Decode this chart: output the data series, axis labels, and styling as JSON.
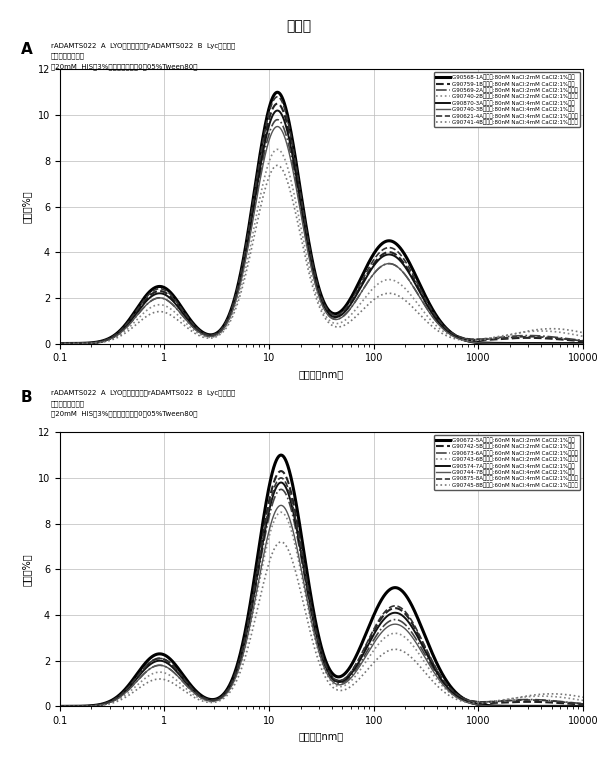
{
  "title": "図２５",
  "panel_A_title1": "rADAMTS022  A  LYO開始時およびrADAMTS022  B  Lyc開始時：",
  "panel_A_title2": "強度によるサイズ",
  "panel_A_subtitle": "（20mM  HIS；3%マンニトール；0．05%Tween80）",
  "panel_B_title1": "rADAMTS022  A  LYO開始時およびrADAMTS022  B  Lyc開始時：",
  "panel_B_title2": "強度によるサイズ",
  "panel_B_subtitle": "（20mM  HIS；3%マンニトール；0．05%Tween80）",
  "xlabel": "サイズ（nm）",
  "ylabel": "強度（%）",
  "legend_A": [
    {
      "label": "G90568-1A開始時:80nM NaCl:2mM CaCl2:1%の層",
      "color": "#000000",
      "ls": "-",
      "lw": 2.2
    },
    {
      "label": "G90759-1B開始時:80nM NaCl:2mM CaCl2:1%の脱",
      "color": "#222222",
      "ls": "--",
      "lw": 1.5
    },
    {
      "label": "G90569-2A開始時:80nM NaCl:2mM CaCl2:1%バース",
      "color": "#444444",
      "ls": "-.",
      "lw": 1.2
    },
    {
      "label": "G90740-2B開始時:80nM NaCl:2mM CaCl2:1%バース",
      "color": "#888888",
      "ls": ":",
      "lw": 1.2
    },
    {
      "label": "G90870-3A開始時:80nM NaCl:4mM CaCl2:1%の脱",
      "color": "#111111",
      "ls": "-",
      "lw": 1.4
    },
    {
      "label": "G90740-3B開始時:80nM NaCl:4mM CaCl2:1%の線",
      "color": "#555555",
      "ls": "-",
      "lw": 1.0
    },
    {
      "label": "G90621-4A開始時:80nM NaCl:4mM CaCl2:1%バース",
      "color": "#333333",
      "ls": "--",
      "lw": 1.2
    },
    {
      "label": "G90741-4B開始時:80nM NaCl:4mM CaCl2:1%バース",
      "color": "#777777",
      "ls": ":",
      "lw": 1.2
    }
  ],
  "legend_B": [
    {
      "label": "G90672-5A開始時:60nM NaCl:2mM CaCl2:1%の層",
      "color": "#000000",
      "ls": "-",
      "lw": 2.2
    },
    {
      "label": "G90742-5B開始時:60nM NaCl:2mM CaCl2:1%の脱",
      "color": "#222222",
      "ls": "--",
      "lw": 1.5
    },
    {
      "label": "G90673-6A開始時:60nM NaCl:2mM CaCl2:1%バース",
      "color": "#444444",
      "ls": "-.",
      "lw": 1.2
    },
    {
      "label": "G90743-6B開始時:60nM NaCl:2mM CaCl2:1%バース",
      "color": "#888888",
      "ls": ":",
      "lw": 1.2
    },
    {
      "label": "G90574-7A開始時:60nM NaCl:4mM CaCl2:1%の脱",
      "color": "#111111",
      "ls": "-",
      "lw": 1.4
    },
    {
      "label": "G90744-7B開始時:60nM NaCl:4mM CaCl2:1%の線",
      "color": "#555555",
      "ls": "-",
      "lw": 1.0
    },
    {
      "label": "G90875-8A開始時:60nM NaCl:4mM CaCl2:1%バース",
      "color": "#333333",
      "ls": "--",
      "lw": 1.2
    },
    {
      "label": "G90745-8B開始時:60nM NaCl:4mM CaCl2:1%バース",
      "color": "#777777",
      "ls": ":",
      "lw": 1.2
    }
  ],
  "curves_A": [
    {
      "p1c": 0.9,
      "p1a": 2.5,
      "p2c": 12,
      "p2a": 11.0,
      "p3c": 140,
      "p3a": 4.5,
      "p4c": 3000,
      "p4a": 0.0
    },
    {
      "p1c": 0.9,
      "p1a": 2.3,
      "p2c": 12,
      "p2a": 10.5,
      "p3c": 140,
      "p3a": 4.0,
      "p4c": 3000,
      "p4a": 0.25
    },
    {
      "p1c": 0.9,
      "p1a": 2.0,
      "p2c": 12,
      "p2a": 9.8,
      "p3c": 140,
      "p3a": 3.5,
      "p4c": 3000,
      "p4a": 0.35
    },
    {
      "p1c": 0.9,
      "p1a": 1.7,
      "p2c": 12,
      "p2a": 8.5,
      "p3c": 140,
      "p3a": 2.8,
      "p4c": 4000,
      "p4a": 0.55
    },
    {
      "p1c": 0.9,
      "p1a": 2.2,
      "p2c": 12,
      "p2a": 10.2,
      "p3c": 140,
      "p3a": 3.9,
      "p4c": 3000,
      "p4a": 0.0
    },
    {
      "p1c": 0.9,
      "p1a": 2.0,
      "p2c": 12,
      "p2a": 9.5,
      "p3c": 140,
      "p3a": 3.5,
      "p4c": 3000,
      "p4a": 0.0
    },
    {
      "p1c": 0.9,
      "p1a": 2.4,
      "p2c": 12,
      "p2a": 10.8,
      "p3c": 140,
      "p3a": 4.2,
      "p4c": 3000,
      "p4a": 0.3
    },
    {
      "p1c": 0.9,
      "p1a": 1.4,
      "p2c": 12,
      "p2a": 7.8,
      "p3c": 140,
      "p3a": 2.2,
      "p4c": 5000,
      "p4a": 0.65
    }
  ],
  "curves_B": [
    {
      "p1c": 0.9,
      "p1a": 2.3,
      "p2c": 13,
      "p2a": 11.0,
      "p3c": 160,
      "p3a": 5.2,
      "p4c": 3000,
      "p4a": 0.0
    },
    {
      "p1c": 0.9,
      "p1a": 2.1,
      "p2c": 13,
      "p2a": 10.3,
      "p3c": 160,
      "p3a": 4.3,
      "p4c": 3000,
      "p4a": 0.2
    },
    {
      "p1c": 0.9,
      "p1a": 1.8,
      "p2c": 13,
      "p2a": 9.5,
      "p3c": 160,
      "p3a": 3.8,
      "p4c": 3000,
      "p4a": 0.3
    },
    {
      "p1c": 0.9,
      "p1a": 1.5,
      "p2c": 13,
      "p2a": 8.5,
      "p3c": 160,
      "p3a": 3.2,
      "p4c": 4000,
      "p4a": 0.45
    },
    {
      "p1c": 0.9,
      "p1a": 2.0,
      "p2c": 13,
      "p2a": 9.8,
      "p3c": 160,
      "p3a": 4.1,
      "p4c": 3000,
      "p4a": 0.0
    },
    {
      "p1c": 0.9,
      "p1a": 1.8,
      "p2c": 13,
      "p2a": 8.8,
      "p3c": 160,
      "p3a": 3.6,
      "p4c": 3000,
      "p4a": 0.0
    },
    {
      "p1c": 0.9,
      "p1a": 2.1,
      "p2c": 13,
      "p2a": 10.0,
      "p3c": 160,
      "p3a": 4.4,
      "p4c": 3000,
      "p4a": 0.28
    },
    {
      "p1c": 0.9,
      "p1a": 1.2,
      "p2c": 13,
      "p2a": 7.2,
      "p3c": 160,
      "p3a": 2.5,
      "p4c": 5000,
      "p4a": 0.55
    }
  ],
  "sigma1": 0.22,
  "sigma2": 0.22,
  "sigma3": 0.28,
  "sigma4": 0.38,
  "background_color": "#ffffff",
  "grid_color": "#bbbbbb"
}
